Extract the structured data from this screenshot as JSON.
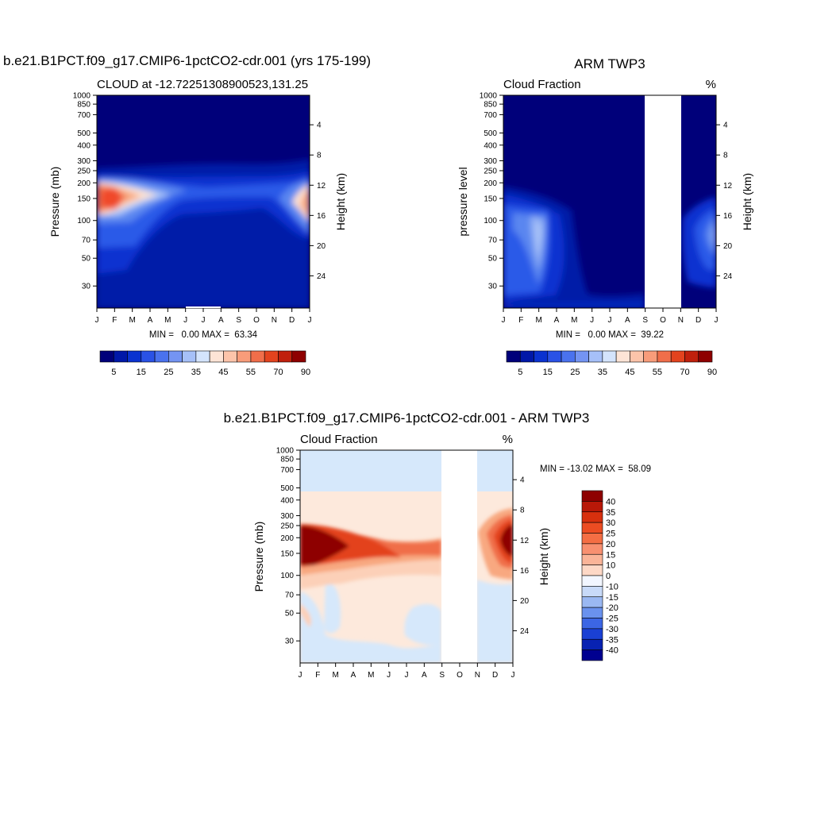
{
  "chart_data": [
    {
      "type": "heatmap",
      "title": "b.e21.B1PCT.f09_g17.CMIP6-1pctCO2-cdr.001 (yrs 175-199)",
      "subtitle_left": "CLOUD at -12.72251308900523,131.25",
      "subtitle_right": "",
      "ylabel": "Pressure (mb)",
      "ylabel_right": "Height (km)",
      "y_scale": "log",
      "ylim": [
        1000,
        20
      ],
      "months": [
        "J",
        "F",
        "M",
        "A",
        "M",
        "J",
        "J",
        "A",
        "S",
        "O",
        "N",
        "D",
        "J"
      ],
      "pressure_ticks": [
        "30",
        "50",
        "70",
        "100",
        "150",
        "200",
        "250",
        "300",
        "400",
        "500",
        "700",
        "850",
        "1000"
      ],
      "height_ticks": [
        "24",
        "20",
        "16",
        "12",
        "8",
        "4"
      ],
      "min_max_text": "MIN =   0.00 MAX =  63.34",
      "colorbar_orientation": "horizontal",
      "colorbar_labels": [
        "5",
        "15",
        "25",
        "35",
        "45",
        "55",
        "70",
        "90"
      ],
      "missing_months": []
    },
    {
      "type": "heatmap",
      "title": "ARM TWP3",
      "subtitle_left": "Cloud Fraction",
      "subtitle_right": "%",
      "ylabel": "pressure level",
      "ylabel_right": "Height (km)",
      "y_scale": "log",
      "ylim": [
        1000,
        20
      ],
      "months": [
        "J",
        "F",
        "M",
        "A",
        "M",
        "J",
        "J",
        "A",
        "S",
        "O",
        "N",
        "D",
        "J"
      ],
      "pressure_ticks": [
        "30",
        "50",
        "70",
        "100",
        "150",
        "200",
        "250",
        "300",
        "400",
        "500",
        "700",
        "850",
        "1000"
      ],
      "height_ticks": [
        "24",
        "20",
        "16",
        "12",
        "8",
        "4"
      ],
      "min_max_text": "MIN =   0.00 MAX =  39.22",
      "colorbar_orientation": "horizontal",
      "colorbar_labels": [
        "5",
        "15",
        "25",
        "35",
        "45",
        "55",
        "70",
        "90"
      ],
      "missing_months": [
        "S-N"
      ]
    },
    {
      "type": "heatmap",
      "title": "b.e21.B1PCT.f09_g17.CMIP6-1pctCO2-cdr.001 - ARM TWP3",
      "subtitle_left": "Cloud Fraction",
      "subtitle_right": "%",
      "ylabel": "Pressure (mb)",
      "ylabel_right": "Height (km)",
      "y_scale": "log",
      "ylim": [
        1000,
        20
      ],
      "months": [
        "J",
        "F",
        "M",
        "A",
        "M",
        "J",
        "J",
        "A",
        "S",
        "O",
        "N",
        "D",
        "J"
      ],
      "pressure_ticks": [
        "30",
        "50",
        "70",
        "100",
        "150",
        "200",
        "250",
        "300",
        "400",
        "500",
        "700",
        "850",
        "1000"
      ],
      "height_ticks": [
        "24",
        "20",
        "16",
        "12",
        "8",
        "4"
      ],
      "min_max_text": "MIN = -13.02 MAX =  58.09",
      "colorbar_orientation": "vertical",
      "colorbar_labels": [
        "40",
        "35",
        "30",
        "25",
        "20",
        "15",
        "10",
        "0",
        "-10",
        "-15",
        "-20",
        "-25",
        "-30",
        "-35",
        "-40"
      ],
      "missing_months": [
        "S-N"
      ]
    }
  ]
}
